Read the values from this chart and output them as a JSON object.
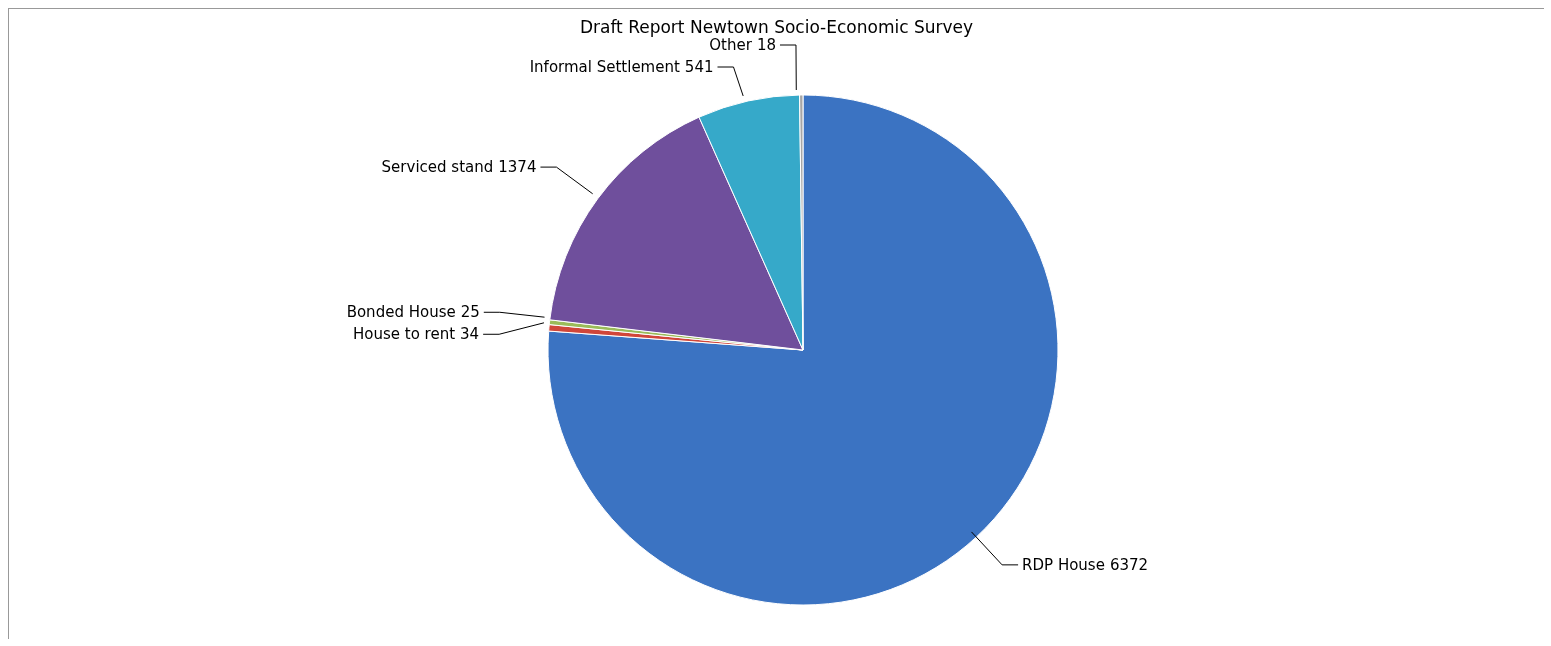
{
  "chart_data": {
    "type": "pie",
    "title": "Draft Report Newtown Socio-Economic Survey",
    "categories": [
      "RDP House",
      "House to rent",
      "Bonded House",
      "Serviced stand",
      "Informal Settlement",
      "Other"
    ],
    "values": [
      6372,
      34,
      25,
      1374,
      541,
      18
    ],
    "colors": [
      "#3b73c2",
      "#d0463a",
      "#9bbb59",
      "#6f4f9c",
      "#36a9c9",
      "#a6a6a6"
    ],
    "data_labels": true,
    "legend": false
  }
}
